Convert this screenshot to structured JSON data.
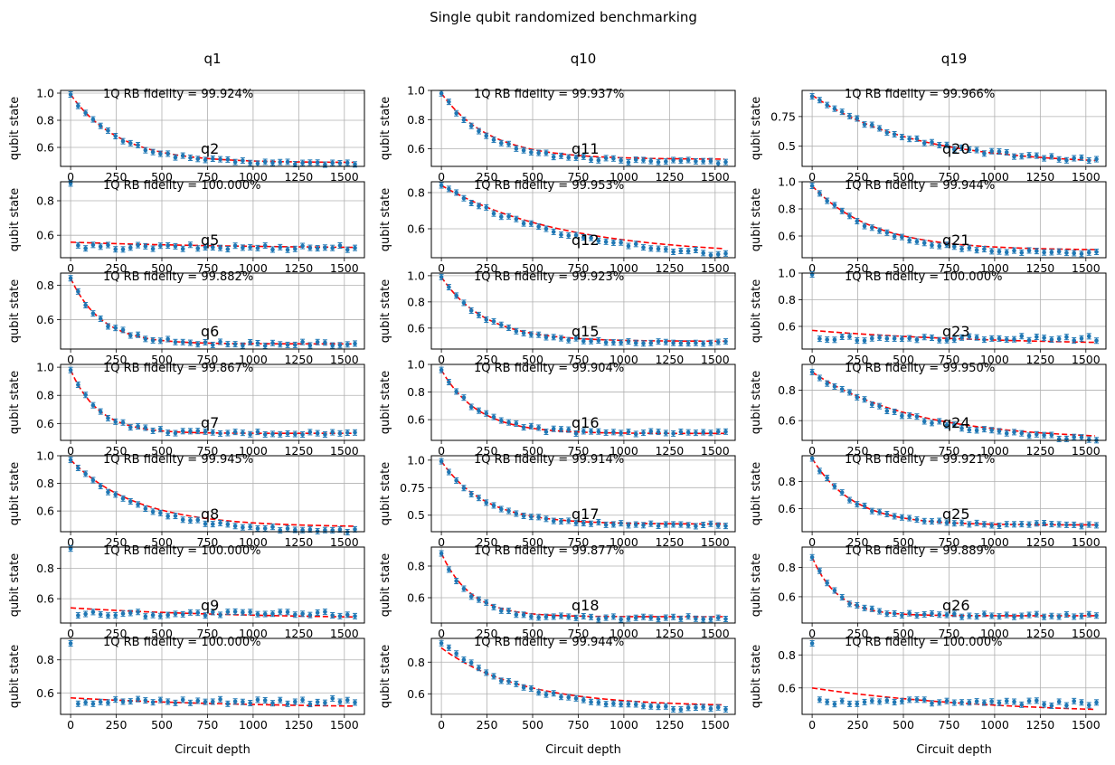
{
  "figure": {
    "suptitle": "Single qubit randomized benchmarking",
    "ylabel": "qubit state",
    "xlabel": "Circuit depth",
    "fidelity_prefix": "1Q RB fidelity = ",
    "xticks": [
      0,
      250,
      500,
      750,
      1000,
      1250,
      1500
    ],
    "colors": {
      "points": "#1f77b4",
      "fit": "#ff0000",
      "grid": "#b0b0b0"
    }
  },
  "chart_data": [
    {
      "col": 0,
      "row": 0,
      "title": "q1",
      "label": "q2",
      "fidelity": "99.924%",
      "type": "scatter",
      "ylim": [
        0.46,
        1.02
      ],
      "yticks": [
        0.6,
        0.8,
        1.0
      ],
      "x_max": 1550,
      "start": 0.99,
      "asym": 0.48,
      "decay": 0.99622,
      "noise": 0.012,
      "first_point": 0.99,
      "fit_start": 0.99,
      "fit_end": 0.49
    },
    {
      "col": 0,
      "row": 1,
      "title": "",
      "label": "q5",
      "fidelity": "100.000%",
      "type": "scatter",
      "ylim": [
        0.47,
        0.91
      ],
      "yticks": [
        0.6,
        0.8
      ],
      "x_max": 1550,
      "start": 0.53,
      "asym": 0.53,
      "decay": 0.999,
      "noise": 0.015,
      "first_point": 0.9,
      "fit_start": 0.56,
      "fit_end": 0.53
    },
    {
      "col": 0,
      "row": 2,
      "title": "",
      "label": "q6",
      "fidelity": "99.882%",
      "type": "scatter",
      "ylim": [
        0.43,
        0.87
      ],
      "yticks": [
        0.6,
        0.8
      ],
      "x_max": 1550,
      "start": 0.84,
      "asym": 0.46,
      "decay": 0.9941,
      "noise": 0.012,
      "first_point": 0.84,
      "fit_start": 0.84,
      "fit_end": 0.46
    },
    {
      "col": 0,
      "row": 3,
      "title": "",
      "label": "q7",
      "fidelity": "99.867%",
      "type": "scatter",
      "ylim": [
        0.48,
        1.02
      ],
      "yticks": [
        0.6,
        0.8,
        1.0
      ],
      "x_max": 1550,
      "start": 0.98,
      "asym": 0.53,
      "decay": 0.9935,
      "noise": 0.012,
      "first_point": 0.98,
      "fit_start": 0.98,
      "fit_end": 0.53
    },
    {
      "col": 0,
      "row": 4,
      "title": "",
      "label": "q8",
      "fidelity": "99.945%",
      "type": "scatter",
      "ylim": [
        0.45,
        1.0
      ],
      "yticks": [
        0.6,
        0.8,
        1.0
      ],
      "x_max": 1550,
      "start": 0.97,
      "asym": 0.45,
      "decay": 0.99725,
      "noise": 0.012,
      "first_point": 0.97,
      "fit_start": 0.97,
      "fit_end": 0.49
    },
    {
      "col": 0,
      "row": 5,
      "title": "",
      "label": "q9",
      "fidelity": "100.000%",
      "type": "scatter",
      "ylim": [
        0.44,
        0.94
      ],
      "yticks": [
        0.6,
        0.8
      ],
      "x_max": 1550,
      "start": 0.5,
      "asym": 0.5,
      "decay": 0.999,
      "noise": 0.018,
      "first_point": 0.93,
      "fit_start": 0.54,
      "fit_end": 0.48
    },
    {
      "col": 0,
      "row": 6,
      "title": "",
      "label": "",
      "fidelity": "100.000%",
      "type": "scatter",
      "ylim": [
        0.47,
        0.93
      ],
      "yticks": [
        0.6,
        0.8
      ],
      "x_max": 1550,
      "start": 0.55,
      "asym": 0.55,
      "decay": 0.999,
      "noise": 0.018,
      "first_point": 0.9,
      "fit_start": 0.57,
      "fit_end": 0.52
    },
    {
      "col": 1,
      "row": 0,
      "title": "q10",
      "label": "q11",
      "fidelity": "99.937%",
      "type": "scatter",
      "ylim": [
        0.48,
        1.0
      ],
      "yticks": [
        0.6,
        0.8,
        1.0
      ],
      "x_max": 1550,
      "start": 0.98,
      "asym": 0.51,
      "decay": 0.9962,
      "noise": 0.012,
      "first_point": 0.98,
      "fit_start": 0.98,
      "fit_end": 0.53
    },
    {
      "col": 1,
      "row": 1,
      "title": "",
      "label": "q12",
      "fidelity": "99.953%",
      "type": "scatter",
      "ylim": [
        0.44,
        0.86
      ],
      "yticks": [
        0.6,
        0.8
      ],
      "x_max": 1550,
      "start": 0.84,
      "asym": 0.42,
      "decay": 0.9985,
      "noise": 0.012,
      "first_point": 0.84,
      "fit_start": 0.84,
      "fit_end": 0.49
    },
    {
      "col": 1,
      "row": 2,
      "title": "",
      "label": "q15",
      "fidelity": "99.923%",
      "type": "scatter",
      "ylim": [
        0.44,
        1.02
      ],
      "yticks": [
        0.6,
        0.8,
        1.0
      ],
      "x_max": 1550,
      "start": 0.99,
      "asym": 0.49,
      "decay": 0.9958,
      "noise": 0.012,
      "first_point": 0.99,
      "fit_start": 0.99,
      "fit_end": 0.5
    },
    {
      "col": 1,
      "row": 3,
      "title": "",
      "label": "q16",
      "fidelity": "99.904%",
      "type": "scatter",
      "ylim": [
        0.45,
        1.0
      ],
      "yticks": [
        0.6,
        0.8,
        1.0
      ],
      "x_max": 1550,
      "start": 0.96,
      "asym": 0.5,
      "decay": 0.995,
      "noise": 0.014,
      "first_point": 0.96,
      "fit_start": 0.96,
      "fit_end": 0.5
    },
    {
      "col": 1,
      "row": 4,
      "title": "",
      "label": "q17",
      "fidelity": "99.914%",
      "type": "scatter",
      "ylim": [
        0.35,
        1.04
      ],
      "yticks": [
        0.5,
        0.75,
        1.0
      ],
      "x_max": 1550,
      "start": 0.99,
      "asym": 0.41,
      "decay": 0.9958,
      "noise": 0.012,
      "first_point": 0.99,
      "fit_start": 0.99,
      "fit_end": 0.42
    },
    {
      "col": 1,
      "row": 5,
      "title": "",
      "label": "q18",
      "fidelity": "99.877%",
      "type": "scatter",
      "ylim": [
        0.44,
        0.92
      ],
      "yticks": [
        0.6,
        0.8
      ],
      "x_max": 1550,
      "start": 0.88,
      "asym": 0.47,
      "decay": 0.9938,
      "noise": 0.012,
      "first_point": 0.88,
      "fit_start": 0.88,
      "fit_end": 0.48
    },
    {
      "col": 1,
      "row": 6,
      "title": "",
      "label": "",
      "fidelity": "99.944%",
      "type": "scatter",
      "ylim": [
        0.47,
        0.95
      ],
      "yticks": [
        0.6,
        0.8
      ],
      "x_max": 1550,
      "start": 0.92,
      "asym": 0.49,
      "decay": 0.9977,
      "noise": 0.012,
      "first_point": 0.92,
      "fit_start": 0.89,
      "fit_end": 0.53
    },
    {
      "col": 2,
      "row": 0,
      "title": "q19",
      "label": "q20",
      "fidelity": "99.966%",
      "type": "scatter",
      "ylim": [
        0.33,
        0.97
      ],
      "yticks": [
        0.5,
        0.75
      ],
      "x_max": 1550,
      "start": 0.92,
      "asym": 0.35,
      "decay": 0.9982,
      "noise": 0.018,
      "first_point": 0.92,
      "fit_start": 0.93,
      "fit_end": 0.38
    },
    {
      "col": 2,
      "row": 1,
      "title": "",
      "label": "q21",
      "fidelity": "99.944%",
      "type": "scatter",
      "ylim": [
        0.44,
        1.0
      ],
      "yticks": [
        0.6,
        0.8,
        1.0
      ],
      "x_max": 1550,
      "start": 0.97,
      "asym": 0.47,
      "decay": 0.997,
      "noise": 0.012,
      "first_point": 0.97,
      "fit_start": 0.97,
      "fit_end": 0.5
    },
    {
      "col": 2,
      "row": 2,
      "title": "",
      "label": "q23",
      "fidelity": "100.000%",
      "type": "scatter",
      "ylim": [
        0.43,
        1.0
      ],
      "yticks": [
        0.6,
        0.8,
        1.0
      ],
      "x_max": 1550,
      "start": 0.51,
      "asym": 0.51,
      "decay": 0.999,
      "noise": 0.018,
      "first_point": 0.99,
      "fit_start": 0.57,
      "fit_end": 0.48
    },
    {
      "col": 2,
      "row": 3,
      "title": "",
      "label": "q24",
      "fidelity": "99.950%",
      "type": "scatter",
      "ylim": [
        0.47,
        0.97
      ],
      "yticks": [
        0.6,
        0.8
      ],
      "x_max": 1550,
      "start": 0.92,
      "asym": 0.45,
      "decay": 0.9982,
      "noise": 0.012,
      "first_point": 0.92,
      "fit_start": 0.92,
      "fit_end": 0.5
    },
    {
      "col": 2,
      "row": 4,
      "title": "",
      "label": "q25",
      "fidelity": "99.921%",
      "type": "scatter",
      "ylim": [
        0.43,
        0.99
      ],
      "yticks": [
        0.6,
        0.8
      ],
      "x_max": 1550,
      "start": 0.97,
      "asym": 0.48,
      "decay": 0.9955,
      "noise": 0.012,
      "first_point": 0.97,
      "fit_start": 0.97,
      "fit_end": 0.48
    },
    {
      "col": 2,
      "row": 5,
      "title": "",
      "label": "q26",
      "fidelity": "99.889%",
      "type": "scatter",
      "ylim": [
        0.42,
        0.94
      ],
      "yticks": [
        0.6,
        0.8
      ],
      "x_max": 1550,
      "start": 0.87,
      "asym": 0.47,
      "decay": 0.9928,
      "noise": 0.012,
      "first_point": 0.87,
      "fit_start": 0.87,
      "fit_end": 0.47
    },
    {
      "col": 2,
      "row": 6,
      "title": "",
      "label": "",
      "fidelity": "100.000%",
      "type": "scatter",
      "ylim": [
        0.44,
        0.9
      ],
      "yticks": [
        0.6,
        0.8
      ],
      "x_max": 1550,
      "start": 0.52,
      "asym": 0.5,
      "decay": 0.999,
      "noise": 0.018,
      "first_point": 0.87,
      "fit_start": 0.6,
      "fit_end": 0.47
    }
  ]
}
